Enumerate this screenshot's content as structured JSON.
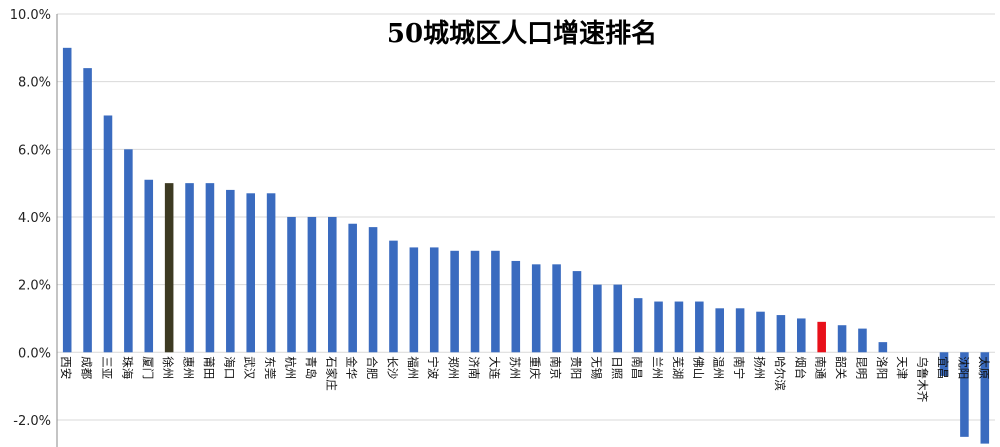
{
  "chart_data": {
    "type": "bar",
    "title": "50城城区人口增速排名",
    "xlabel": "",
    "ylabel": "",
    "ylim": [
      -2.8,
      10.0
    ],
    "yticks": [
      "10.0%",
      "8.0%",
      "6.0%",
      "4.0%",
      "2.0%",
      "0.0%",
      "-2.0%"
    ],
    "ytick_values": [
      10,
      8,
      6,
      4,
      2,
      0,
      -2
    ],
    "grid": true,
    "legend": "none",
    "categories": [
      "西安",
      "成都",
      "三亚",
      "珠海",
      "厦门",
      "徐州",
      "惠州",
      "莆田",
      "海口",
      "武汉",
      "东莞",
      "杭州",
      "青岛",
      "石家庄",
      "金华",
      "合肥",
      "长沙",
      "福州",
      "宁波",
      "郑州",
      "济南",
      "大连",
      "苏州",
      "重庆",
      "南京",
      "贵阳",
      "无锡",
      "日照",
      "南昌",
      "兰州",
      "芜湖",
      "佛山",
      "温州",
      "南宁",
      "扬州",
      "哈尔滨",
      "烟台",
      "南通",
      "韶关",
      "昆明",
      "洛阳",
      "天津",
      "乌鲁木齐",
      "宜昌",
      "沈阳",
      "太原"
    ],
    "values": [
      9.0,
      8.4,
      7.0,
      6.0,
      5.1,
      5.0,
      5.0,
      5.0,
      4.8,
      4.7,
      4.7,
      4.0,
      4.0,
      4.0,
      3.8,
      3.7,
      3.3,
      3.1,
      3.1,
      3.0,
      3.0,
      3.0,
      2.7,
      2.6,
      2.6,
      2.4,
      2.0,
      2.0,
      1.6,
      1.5,
      1.5,
      1.5,
      1.3,
      1.3,
      1.2,
      1.1,
      1.0,
      0.9,
      0.8,
      0.7,
      0.3,
      0.0,
      0.0,
      -0.7,
      -2.5,
      -2.7
    ],
    "colors": {
      "default": "#3a6bbf",
      "highlight_dark": "#3d3a22",
      "highlight_red": "#e8101a"
    },
    "highlight": {
      "徐州": "highlight_dark",
      "南通": "highlight_red"
    }
  }
}
